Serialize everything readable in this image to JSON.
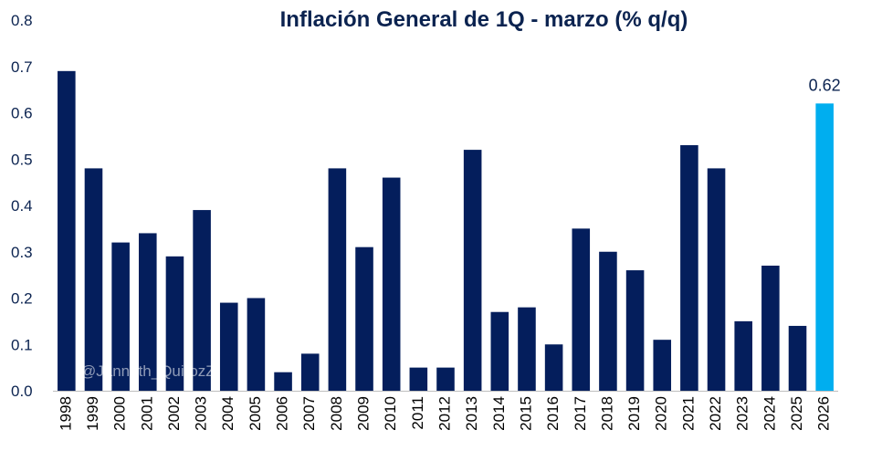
{
  "chart_data": {
    "type": "bar",
    "title": "Inflación General de 1Q - marzo (% q/q)",
    "xlabel": "",
    "ylabel": "",
    "ylim": [
      0,
      0.8
    ],
    "yticks": [
      "0.0",
      "0.1",
      "0.2",
      "0.3",
      "0.4",
      "0.5",
      "0.6",
      "0.7",
      "0.8"
    ],
    "grid": false,
    "categories": [
      "1998",
      "1999",
      "2000",
      "2001",
      "2002",
      "2003",
      "2004",
      "2005",
      "2006",
      "2007",
      "2008",
      "2009",
      "2010",
      "2011",
      "2012",
      "2013",
      "2014",
      "2015",
      "2016",
      "2017",
      "2018",
      "2019",
      "2020",
      "2021",
      "2022",
      "2023",
      "2024",
      "2025",
      "2026"
    ],
    "values": [
      0.69,
      0.48,
      0.32,
      0.34,
      0.29,
      0.39,
      0.19,
      0.2,
      0.04,
      0.08,
      0.48,
      0.31,
      0.46,
      0.05,
      0.05,
      0.52,
      0.17,
      0.18,
      0.1,
      0.35,
      0.3,
      0.26,
      0.11,
      0.53,
      0.48,
      0.15,
      0.27,
      0.14,
      0.62
    ],
    "highlight_index": 28,
    "data_labels": [
      {
        "index": 28,
        "text": "0.62"
      }
    ],
    "colors": {
      "bar": "#041e5c",
      "highlight": "#00aeef",
      "axis": "#bfbfbf",
      "text": "#0b2350"
    },
    "watermark": "@Janneth_QuirozZ"
  }
}
